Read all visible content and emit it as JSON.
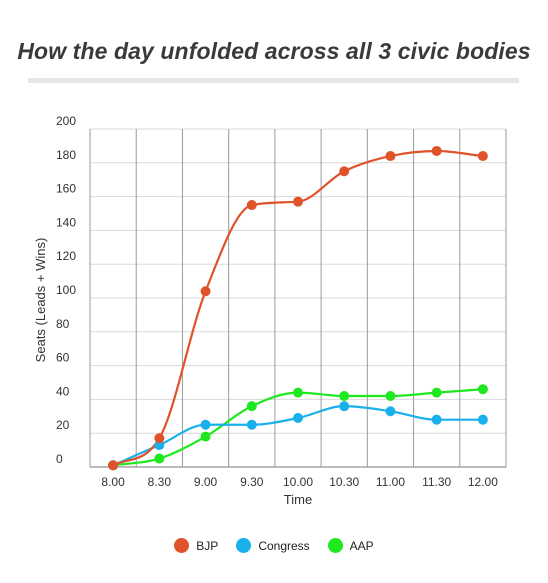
{
  "chart_data": {
    "type": "line",
    "title": "How the day unfolded across all 3 civic bodies",
    "xlabel": "Time",
    "ylabel": "Seats (Leads + Wins)",
    "categories": [
      "8.00",
      "8.30",
      "9.00",
      "9.30",
      "10.00",
      "10.30",
      "11.00",
      "11.30",
      "12.00"
    ],
    "ylim": [
      0,
      200
    ],
    "yticks": [
      0,
      20,
      40,
      60,
      80,
      100,
      120,
      140,
      160,
      180,
      200
    ],
    "grid": true,
    "legend_position": "bottom",
    "series": [
      {
        "name": "BJP",
        "color": "#e0522a",
        "values": [
          1,
          17,
          104,
          155,
          157,
          175,
          184,
          187,
          184
        ]
      },
      {
        "name": "Congress",
        "color": "#1ab0ec",
        "values": [
          1,
          13,
          25,
          25,
          29,
          36,
          33,
          28,
          28
        ]
      },
      {
        "name": "AAP",
        "color": "#1ee81e",
        "values": [
          1,
          5,
          18,
          36,
          44,
          42,
          42,
          44,
          46
        ]
      }
    ]
  }
}
